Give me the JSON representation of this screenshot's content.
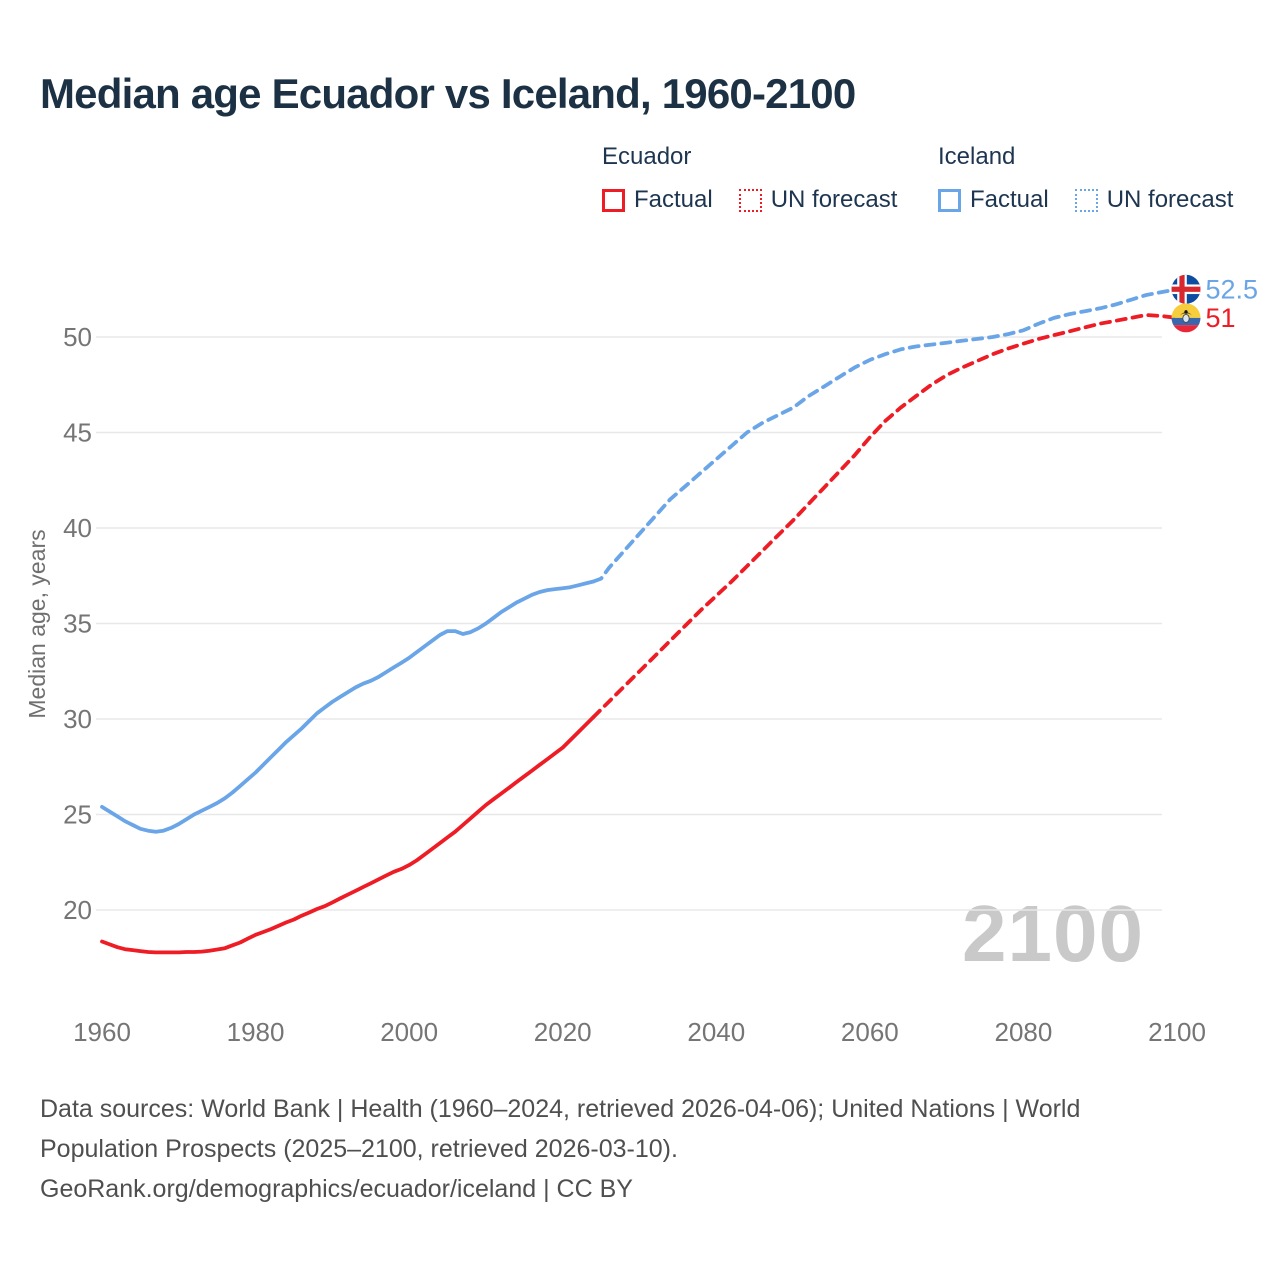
{
  "title": "Median age Ecuador vs Iceland, 1960-2100",
  "legend": {
    "groups": [
      {
        "header": "Ecuador",
        "factual_label": "Factual",
        "forecast_label": "UN forecast",
        "color": "#ee1c25"
      },
      {
        "header": "Iceland",
        "factual_label": "Factual",
        "forecast_label": "UN forecast",
        "color": "#6aa5e8"
      }
    ]
  },
  "watermark": "2100",
  "footer": {
    "line1": "Data sources: World Bank | Health (1960–2024, retrieved 2026-04-06); United Nations | World",
    "line2": "Population Prospects (2025–2100, retrieved 2026-03-10).",
    "line3": "GeoRank.org/demographics/ecuador/iceland | CC BY"
  },
  "colors": {
    "ecuador_line": "#ee1c25",
    "iceland_line": "#6aa5e8",
    "title_text": "#1c3144",
    "legend_text": "#1d3550",
    "tick_text": "#757575",
    "axis_title_text": "#707070",
    "gridline": "#e8e8e8",
    "watermark_text": "#c9c9c9",
    "footer_text": "#4f4f4f",
    "iceland_flag_blue": "#0d4da1",
    "iceland_flag_red": "#d7282f",
    "ecuador_flag_yellow": "#f5cd3d",
    "ecuador_flag_blue": "#3a66ad",
    "ecuador_flag_red": "#e8273b"
  },
  "chart_data": {
    "type": "line",
    "title": "Median age Ecuador vs Iceland, 1960-2100",
    "xlabel": "",
    "ylabel": "Median age, years",
    "xticks": [
      1960,
      1980,
      2000,
      2020,
      2040,
      2060,
      2080,
      2100
    ],
    "yticks": [
      20,
      25,
      30,
      35,
      40,
      45,
      50
    ],
    "xlim": [
      1960,
      2100
    ],
    "ylim": [
      17.5,
      53.5
    ],
    "grid": true,
    "legend_position": "top",
    "series": [
      {
        "name": "Ecuador Factual",
        "style": "solid",
        "color": "#ee1c25",
        "points": [
          [
            1960,
            18.35
          ],
          [
            1961,
            18.2
          ],
          [
            1962,
            18.05
          ],
          [
            1963,
            17.95
          ],
          [
            1964,
            17.9
          ],
          [
            1965,
            17.85
          ],
          [
            1966,
            17.8
          ],
          [
            1967,
            17.78
          ],
          [
            1968,
            17.78
          ],
          [
            1969,
            17.78
          ],
          [
            1970,
            17.78
          ],
          [
            1971,
            17.8
          ],
          [
            1972,
            17.8
          ],
          [
            1973,
            17.82
          ],
          [
            1974,
            17.87
          ],
          [
            1975,
            17.93
          ],
          [
            1976,
            18.0
          ],
          [
            1977,
            18.15
          ],
          [
            1978,
            18.3
          ],
          [
            1979,
            18.5
          ],
          [
            1980,
            18.7
          ],
          [
            1981,
            18.85
          ],
          [
            1982,
            19.0
          ],
          [
            1983,
            19.18
          ],
          [
            1984,
            19.35
          ],
          [
            1985,
            19.5
          ],
          [
            1986,
            19.7
          ],
          [
            1987,
            19.87
          ],
          [
            1988,
            20.05
          ],
          [
            1989,
            20.2
          ],
          [
            1990,
            20.4
          ],
          [
            1991,
            20.6
          ],
          [
            1992,
            20.8
          ],
          [
            1993,
            21.0
          ],
          [
            1994,
            21.2
          ],
          [
            1995,
            21.4
          ],
          [
            1996,
            21.6
          ],
          [
            1997,
            21.8
          ],
          [
            1998,
            22.0
          ],
          [
            1999,
            22.15
          ],
          [
            2000,
            22.35
          ],
          [
            2001,
            22.6
          ],
          [
            2002,
            22.9
          ],
          [
            2003,
            23.2
          ],
          [
            2004,
            23.5
          ],
          [
            2005,
            23.8
          ],
          [
            2006,
            24.1
          ],
          [
            2007,
            24.45
          ],
          [
            2008,
            24.8
          ],
          [
            2009,
            25.15
          ],
          [
            2010,
            25.5
          ],
          [
            2011,
            25.8
          ],
          [
            2012,
            26.1
          ],
          [
            2013,
            26.4
          ],
          [
            2014,
            26.7
          ],
          [
            2015,
            27.0
          ],
          [
            2016,
            27.3
          ],
          [
            2017,
            27.6
          ],
          [
            2018,
            27.9
          ],
          [
            2019,
            28.2
          ],
          [
            2020,
            28.5
          ],
          [
            2021,
            28.9
          ],
          [
            2022,
            29.3
          ],
          [
            2023,
            29.7
          ],
          [
            2024,
            30.1
          ]
        ]
      },
      {
        "name": "Ecuador UN forecast",
        "style": "dashed",
        "color": "#ee1c25",
        "points": [
          [
            2024,
            30.1
          ],
          [
            2026,
            30.9
          ],
          [
            2028,
            31.7
          ],
          [
            2030,
            32.5
          ],
          [
            2032,
            33.3
          ],
          [
            2034,
            34.1
          ],
          [
            2036,
            34.9
          ],
          [
            2038,
            35.7
          ],
          [
            2040,
            36.45
          ],
          [
            2042,
            37.2
          ],
          [
            2044,
            38.0
          ],
          [
            2046,
            38.8
          ],
          [
            2048,
            39.6
          ],
          [
            2050,
            40.4
          ],
          [
            2052,
            41.25
          ],
          [
            2054,
            42.1
          ],
          [
            2056,
            42.95
          ],
          [
            2058,
            43.8
          ],
          [
            2060,
            44.75
          ],
          [
            2062,
            45.6
          ],
          [
            2064,
            46.3
          ],
          [
            2066,
            46.9
          ],
          [
            2068,
            47.5
          ],
          [
            2070,
            48.0
          ],
          [
            2072,
            48.4
          ],
          [
            2074,
            48.75
          ],
          [
            2076,
            49.1
          ],
          [
            2078,
            49.4
          ],
          [
            2080,
            49.65
          ],
          [
            2082,
            49.9
          ],
          [
            2084,
            50.1
          ],
          [
            2086,
            50.3
          ],
          [
            2088,
            50.5
          ],
          [
            2090,
            50.7
          ],
          [
            2092,
            50.85
          ],
          [
            2094,
            51.0
          ],
          [
            2096,
            51.15
          ],
          [
            2098,
            51.1
          ],
          [
            2100,
            51.0
          ]
        ]
      },
      {
        "name": "Iceland Factual",
        "style": "solid",
        "color": "#6aa5e8",
        "points": [
          [
            1960,
            25.4
          ],
          [
            1961,
            25.15
          ],
          [
            1962,
            24.9
          ],
          [
            1963,
            24.65
          ],
          [
            1964,
            24.45
          ],
          [
            1965,
            24.25
          ],
          [
            1966,
            24.15
          ],
          [
            1967,
            24.1
          ],
          [
            1968,
            24.15
          ],
          [
            1969,
            24.3
          ],
          [
            1970,
            24.5
          ],
          [
            1971,
            24.75
          ],
          [
            1972,
            25.0
          ],
          [
            1973,
            25.2
          ],
          [
            1974,
            25.4
          ],
          [
            1975,
            25.6
          ],
          [
            1976,
            25.85
          ],
          [
            1977,
            26.15
          ],
          [
            1978,
            26.5
          ],
          [
            1979,
            26.85
          ],
          [
            1980,
            27.2
          ],
          [
            1981,
            27.6
          ],
          [
            1982,
            28.0
          ],
          [
            1983,
            28.4
          ],
          [
            1984,
            28.8
          ],
          [
            1985,
            29.15
          ],
          [
            1986,
            29.5
          ],
          [
            1987,
            29.9
          ],
          [
            1988,
            30.3
          ],
          [
            1989,
            30.6
          ],
          [
            1990,
            30.9
          ],
          [
            1991,
            31.15
          ],
          [
            1992,
            31.4
          ],
          [
            1993,
            31.65
          ],
          [
            1994,
            31.85
          ],
          [
            1995,
            32.0
          ],
          [
            1996,
            32.2
          ],
          [
            1997,
            32.45
          ],
          [
            1998,
            32.7
          ],
          [
            1999,
            32.95
          ],
          [
            2000,
            33.2
          ],
          [
            2001,
            33.5
          ],
          [
            2002,
            33.8
          ],
          [
            2003,
            34.1
          ],
          [
            2004,
            34.4
          ],
          [
            2005,
            34.6
          ],
          [
            2006,
            34.6
          ],
          [
            2007,
            34.45
          ],
          [
            2008,
            34.55
          ],
          [
            2009,
            34.75
          ],
          [
            2010,
            35.0
          ],
          [
            2011,
            35.3
          ],
          [
            2012,
            35.6
          ],
          [
            2013,
            35.85
          ],
          [
            2014,
            36.1
          ],
          [
            2015,
            36.3
          ],
          [
            2016,
            36.5
          ],
          [
            2017,
            36.65
          ],
          [
            2018,
            36.75
          ],
          [
            2019,
            36.8
          ],
          [
            2020,
            36.85
          ],
          [
            2021,
            36.9
          ],
          [
            2022,
            37.0
          ],
          [
            2023,
            37.1
          ],
          [
            2024,
            37.2
          ]
        ]
      },
      {
        "name": "Iceland UN forecast",
        "style": "dashed",
        "color": "#6aa5e8",
        "points": [
          [
            2024,
            37.2
          ],
          [
            2025,
            37.35
          ],
          [
            2026,
            37.9
          ],
          [
            2028,
            38.8
          ],
          [
            2030,
            39.7
          ],
          [
            2032,
            40.6
          ],
          [
            2034,
            41.5
          ],
          [
            2036,
            42.2
          ],
          [
            2038,
            42.9
          ],
          [
            2040,
            43.6
          ],
          [
            2042,
            44.3
          ],
          [
            2044,
            45.0
          ],
          [
            2046,
            45.5
          ],
          [
            2048,
            45.9
          ],
          [
            2050,
            46.3
          ],
          [
            2052,
            46.9
          ],
          [
            2054,
            47.4
          ],
          [
            2056,
            47.9
          ],
          [
            2058,
            48.4
          ],
          [
            2060,
            48.8
          ],
          [
            2062,
            49.1
          ],
          [
            2064,
            49.35
          ],
          [
            2066,
            49.5
          ],
          [
            2068,
            49.6
          ],
          [
            2070,
            49.7
          ],
          [
            2072,
            49.8
          ],
          [
            2074,
            49.9
          ],
          [
            2076,
            50.0
          ],
          [
            2078,
            50.15
          ],
          [
            2080,
            50.35
          ],
          [
            2082,
            50.7
          ],
          [
            2084,
            51.0
          ],
          [
            2086,
            51.2
          ],
          [
            2088,
            51.35
          ],
          [
            2090,
            51.5
          ],
          [
            2092,
            51.7
          ],
          [
            2094,
            51.95
          ],
          [
            2096,
            52.2
          ],
          [
            2098,
            52.35
          ],
          [
            2100,
            52.5
          ]
        ]
      }
    ],
    "end_labels": [
      {
        "series": "Iceland",
        "flag": "iceland",
        "label": "52.5",
        "value": 52.5,
        "color": "#6aa5e8"
      },
      {
        "series": "Ecuador",
        "flag": "ecuador",
        "label": "51",
        "value": 51.0,
        "color": "#ee1c25"
      }
    ]
  }
}
